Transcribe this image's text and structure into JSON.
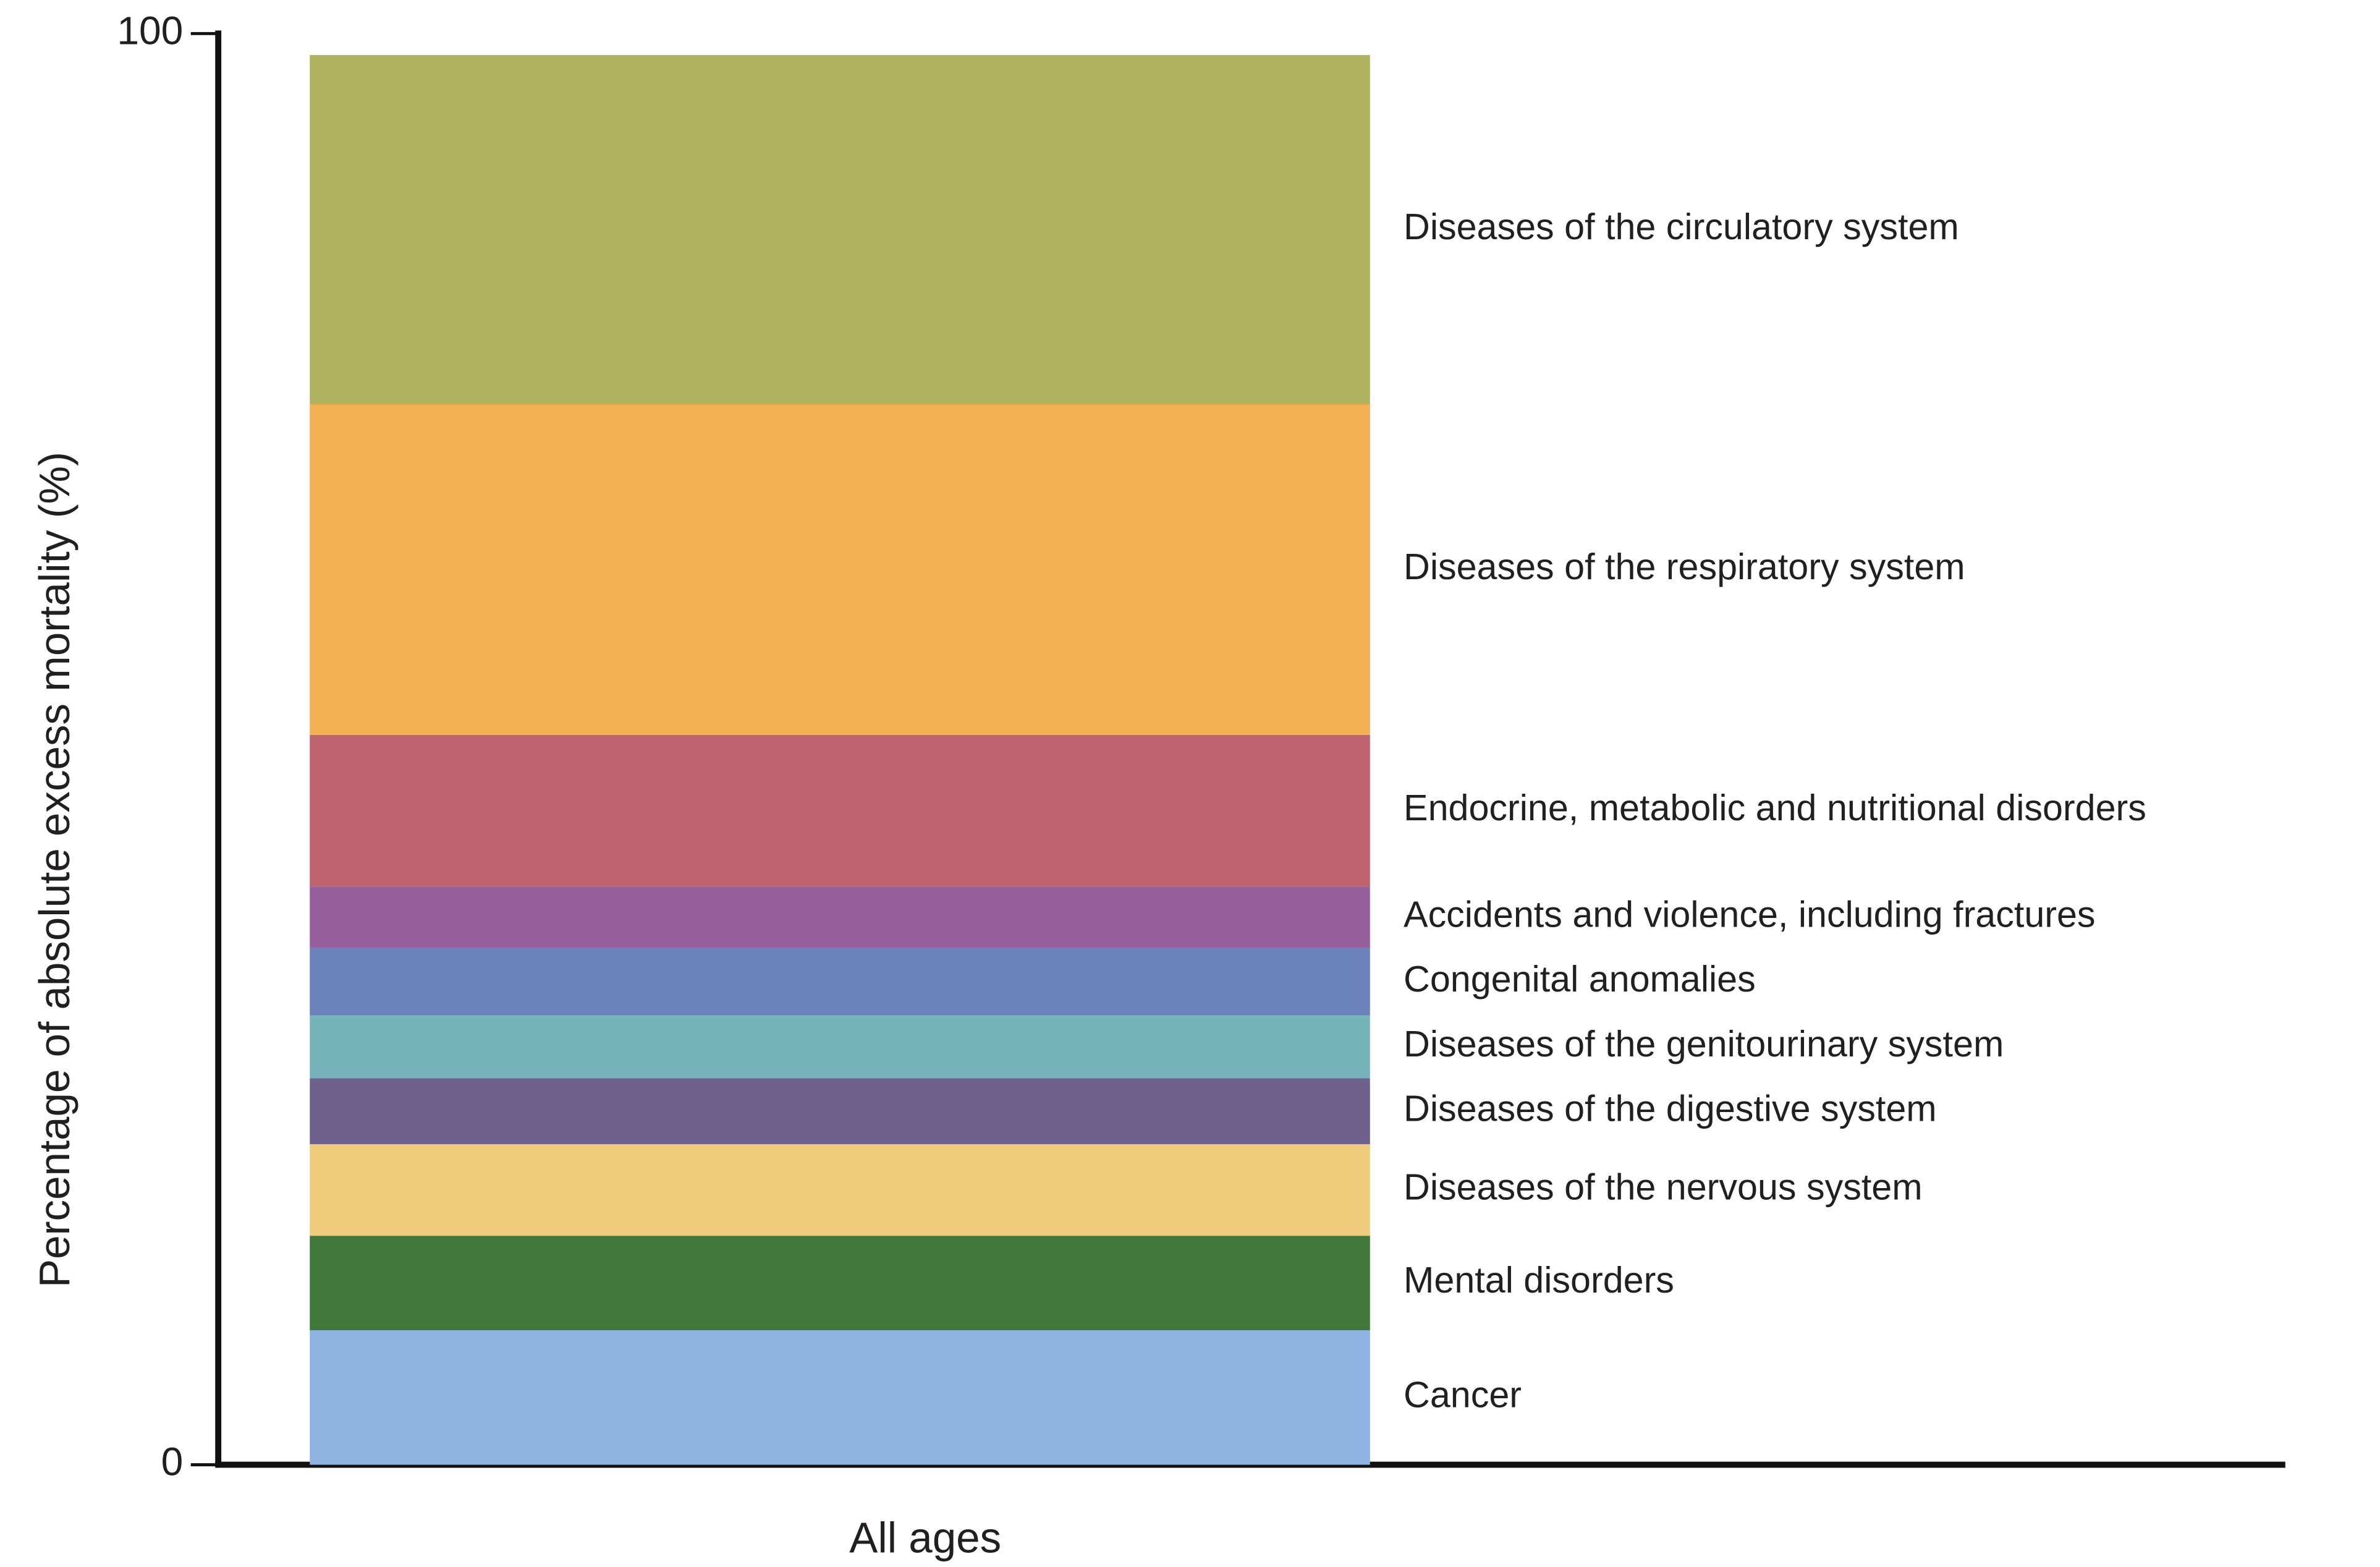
{
  "chart_data": {
    "type": "stacked_bar",
    "categories": [
      "All ages"
    ],
    "y_label": "Percentage of absolute excess mortality (%)",
    "ylim": [
      0,
      100
    ],
    "yticks": [
      0,
      100
    ],
    "series": [
      {
        "name": "Cancer",
        "color": "#8fb3e0",
        "values": [
          9.4
        ]
      },
      {
        "name": "Mental disorders",
        "color": "#3f783a",
        "values": [
          6.6
        ]
      },
      {
        "name": "Diseases of the nervous system",
        "color": "#f0cb7b",
        "values": [
          6.4
        ]
      },
      {
        "name": "Diseases of the digestive system",
        "color": "#6f618b",
        "values": [
          4.6
        ]
      },
      {
        "name": "Diseases of the genitourinary system",
        "color": "#77b3bb",
        "values": [
          4.4
        ]
      },
      {
        "name": "Congenital anomalies",
        "color": "#6a82b9",
        "values": [
          4.7
        ]
      },
      {
        "name": "Accidents and violence, including fractures",
        "color": "#965d9b",
        "values": [
          4.3
        ]
      },
      {
        "name": "Endocrine, metabolic and nutritional disorders",
        "color": "#bf636f",
        "values": [
          10.6
        ]
      },
      {
        "name": "Diseases of the respiratory system",
        "color": "#f4af53",
        "values": [
          23.1
        ]
      },
      {
        "name": "Diseases of the circulatory system",
        "color": "#afb25f",
        "values": [
          24.4
        ]
      }
    ]
  }
}
